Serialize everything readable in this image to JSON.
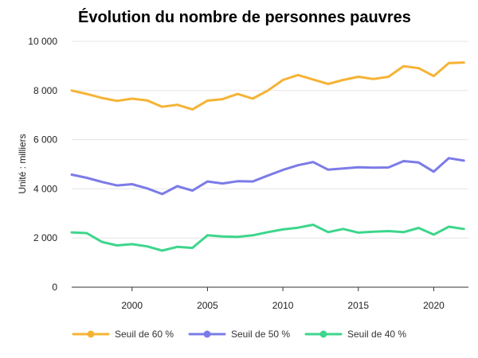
{
  "chart_data": {
    "type": "line",
    "title": "Évolution du nombre de personnes pauvres",
    "xlabel": "",
    "ylabel": "Unité : milliers",
    "x": [
      1996,
      1997,
      1998,
      1999,
      2000,
      2001,
      2002,
      2003,
      2004,
      2005,
      2006,
      2007,
      2008,
      2009,
      2010,
      2011,
      2012,
      2013,
      2014,
      2015,
      2016,
      2017,
      2018,
      2019,
      2020,
      2021,
      2022
    ],
    "xlim": [
      1996,
      2022.3
    ],
    "ylim": [
      0,
      10000
    ],
    "x_ticks": [
      2000,
      2005,
      2010,
      2015,
      2020
    ],
    "x_tick_labels": [
      "2000",
      "2005",
      "2010",
      "2015",
      "2020"
    ],
    "y_ticks": [
      0,
      2000,
      4000,
      6000,
      8000,
      10000
    ],
    "y_tick_labels": [
      "0",
      "2 000",
      "4 000",
      "6 000",
      "8 000",
      "10 000"
    ],
    "grid": true,
    "legend_position": "bottom-left",
    "series": [
      {
        "name": "Seuil de 60 %",
        "color": "#f5b335",
        "values": [
          8000,
          7860,
          7700,
          7580,
          7670,
          7600,
          7340,
          7420,
          7230,
          7590,
          7650,
          7860,
          7670,
          8000,
          8430,
          8630,
          8450,
          8270,
          8430,
          8560,
          8470,
          8560,
          8990,
          8910,
          8590,
          9120,
          9140
        ]
      },
      {
        "name": "Seuil de 50 %",
        "color": "#7b7be8",
        "values": [
          4580,
          4450,
          4280,
          4140,
          4190,
          4020,
          3790,
          4110,
          3930,
          4300,
          4220,
          4310,
          4300,
          4540,
          4770,
          4960,
          5090,
          4780,
          4830,
          4880,
          4860,
          4870,
          5130,
          5070,
          4700,
          5250,
          5150
        ]
      },
      {
        "name": "Seuil de 40 %",
        "color": "#3dd68c",
        "values": [
          2230,
          2200,
          1840,
          1700,
          1750,
          1660,
          1490,
          1640,
          1600,
          2110,
          2060,
          2050,
          2110,
          2240,
          2350,
          2420,
          2540,
          2240,
          2370,
          2220,
          2260,
          2280,
          2240,
          2410,
          2140,
          2460,
          2370
        ]
      }
    ]
  }
}
